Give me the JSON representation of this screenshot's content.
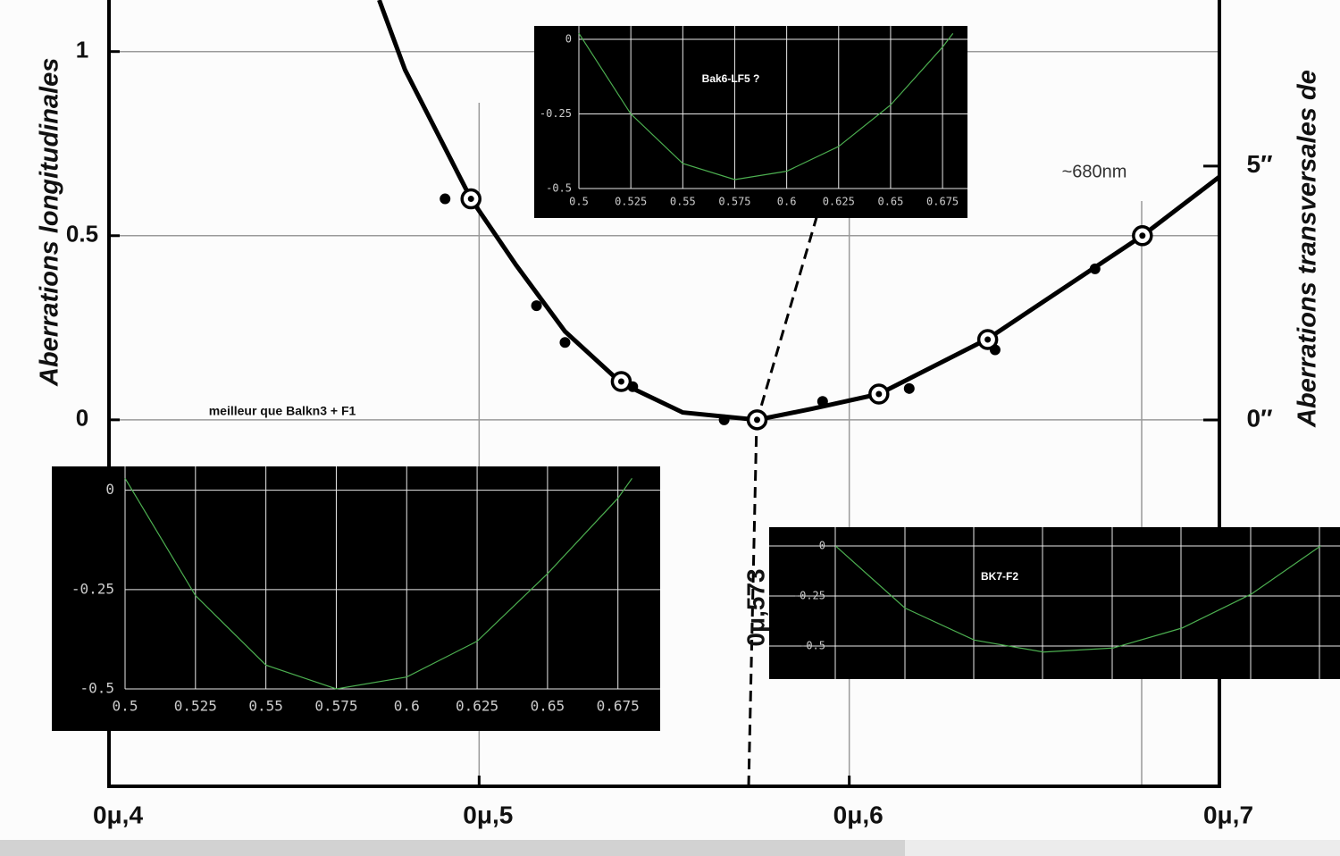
{
  "chart_data": [
    {
      "type": "scatter",
      "y_label": "Aberrations longitudinales",
      "y2_label": "Aberrations transversales de",
      "annotations": [
        "0μ,573",
        "~680nm",
        "meilleur que Balkn3 + F1"
      ],
      "xlim": [
        0.4,
        0.7
      ],
      "xticks": [
        {
          "value": 0.4,
          "label": "0μ,4"
        },
        {
          "value": 0.5,
          "label": "0μ,5"
        },
        {
          "value": 0.6,
          "label": "0μ,6"
        },
        {
          "value": 0.7,
          "label": "0μ,7"
        }
      ],
      "ylim": [
        -1,
        1.14
      ],
      "yticks": [
        0,
        0.5,
        1
      ],
      "y2lim": [
        -7.25,
        8.27
      ],
      "y2ticks": [
        {
          "value": 0,
          "label": "0″"
        },
        {
          "value": 5,
          "label": "5″"
        }
      ],
      "grid": true,
      "series": [
        {
          "marker": "line",
          "color": "#000000",
          "x": [
            0.473,
            0.48,
            0.4978,
            0.51,
            0.5232,
            0.5384,
            0.555,
            0.5751,
            0.59,
            0.608,
            0.6374,
            0.6792,
            0.7
          ],
          "values": [
            1.14,
            0.95,
            0.6,
            0.42,
            0.24,
            0.1,
            0.02,
            0,
            0.03,
            0.07,
            0.22,
            0.5,
            0.66
          ]
        },
        {
          "marker": "open-circle",
          "color": "#000000",
          "x": [
            0.4978,
            0.5384,
            0.5751,
            0.608,
            0.6374,
            0.6792
          ],
          "values": [
            0.6,
            0.104,
            0,
            0.07,
            0.218,
            0.5
          ]
        },
        {
          "marker": "dot",
          "color": "#000000",
          "x": [
            0.4908,
            0.5155,
            0.5232,
            0.5415,
            0.5662,
            0.5928,
            0.6162,
            0.6394,
            0.6664
          ],
          "values": [
            0.6,
            0.31,
            0.21,
            0.09,
            0,
            0.05,
            0.085,
            0.19,
            0.41
          ]
        }
      ]
    },
    {
      "type": "line",
      "title": "Bak6-LF5 ?",
      "color": "#4caf50",
      "xlim": [
        0.5,
        0.687
      ],
      "ylim": [
        -0.5,
        0.045
      ],
      "xticks": [
        0.5,
        0.525,
        0.55,
        0.575,
        0.6,
        0.625,
        0.65,
        0.675
      ],
      "yticks": [
        0,
        -0.25,
        -0.5
      ],
      "grid": true,
      "x": [
        0.5,
        0.525,
        0.55,
        0.575,
        0.6,
        0.625,
        0.65,
        0.675,
        0.68
      ],
      "values": [
        0.02,
        -0.25,
        -0.416,
        -0.47,
        -0.442,
        -0.359,
        -0.22,
        -0.026,
        0.02
      ]
    },
    {
      "type": "line",
      "color": "#4caf50",
      "xlim": [
        0.5,
        0.69
      ],
      "ylim": [
        -0.5,
        0.06
      ],
      "xticks": [
        0.5,
        0.525,
        0.55,
        0.575,
        0.6,
        0.625,
        0.65,
        0.675
      ],
      "yticks": [
        0,
        -0.25,
        -0.5
      ],
      "grid": true,
      "x": [
        0.5,
        0.525,
        0.55,
        0.575,
        0.6,
        0.625,
        0.65,
        0.675,
        0.68
      ],
      "values": [
        0.03,
        -0.265,
        -0.44,
        -0.5,
        -0.47,
        -0.38,
        -0.21,
        -0.02,
        0.03
      ]
    },
    {
      "type": "line",
      "title": "BK7-F2",
      "color": "#4caf50",
      "xlim": [
        0.476,
        0.682
      ],
      "ylim": [
        -0.665,
        0.094
      ],
      "yticks": [
        0,
        -0.25,
        -0.5
      ],
      "grid": true,
      "x": [
        0.5,
        0.525,
        0.55,
        0.575,
        0.6,
        0.625,
        0.65,
        0.675
      ],
      "values": [
        0,
        -0.31,
        -0.47,
        -0.53,
        -0.51,
        -0.41,
        -0.24,
        0
      ]
    }
  ]
}
